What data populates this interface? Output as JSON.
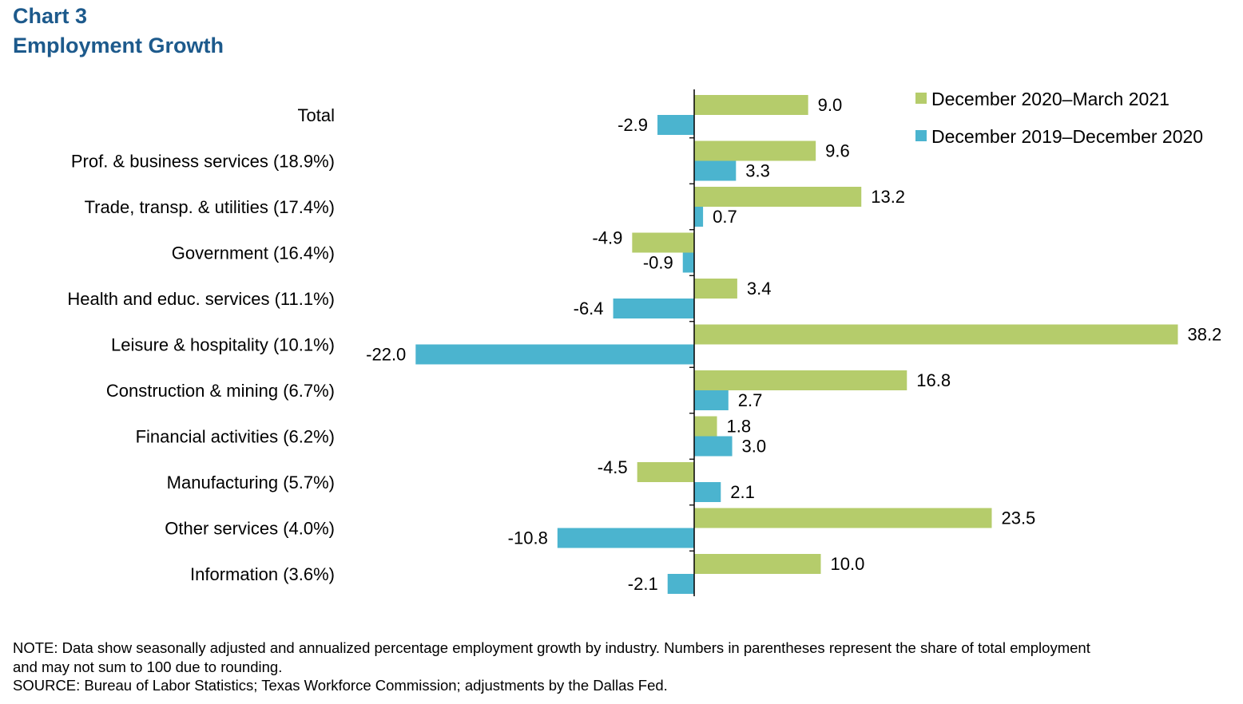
{
  "header": {
    "chart_number": "Chart 3",
    "title": "Employment Growth"
  },
  "colors": {
    "title": "#1d5a8c",
    "series_recent": "#b5cc6b",
    "series_prior": "#4bb4cf"
  },
  "chart_data": {
    "type": "bar",
    "orientation": "horizontal",
    "title": "Employment Growth",
    "categories": [
      "Total",
      "Prof. & business services (18.9%)",
      "Trade, transp. & utilities (17.4%)",
      "Government (16.4%)",
      "Health and educ. services (11.1%)",
      "Leisure & hospitality (10.1%)",
      "Construction & mining (6.7%)",
      "Financial activities (6.2%)",
      "Manufacturing (5.7%)",
      "Other services (4.0%)",
      "Information (3.6%)"
    ],
    "series": [
      {
        "name": "December 2020–March 2021",
        "color": "#b5cc6b",
        "values": [
          9.0,
          9.6,
          13.2,
          -4.9,
          3.4,
          38.2,
          16.8,
          1.8,
          -4.5,
          23.5,
          10.0
        ],
        "labels": [
          "9.0",
          "9.6",
          "13.2",
          "-4.9",
          "3.4",
          "38.2",
          "16.8",
          "1.8",
          "-4.5",
          "23.5",
          "10.0"
        ]
      },
      {
        "name": "December 2019–December 2020",
        "color": "#4bb4cf",
        "values": [
          -2.9,
          3.3,
          0.7,
          -0.9,
          -6.4,
          -22.0,
          2.7,
          3.0,
          2.1,
          -10.8,
          -2.1
        ],
        "labels": [
          "-2.9",
          "3.3",
          "0.7",
          "-0.9",
          "-6.4",
          "-22.0",
          "2.7",
          "3.0",
          "2.1",
          "-10.8",
          "-2.1"
        ]
      }
    ],
    "legend_position": "top-right",
    "grid": false
  },
  "notes": {
    "note": "NOTE: Data show seasonally adjusted and annualized percentage employment growth by industry. Numbers in parentheses represent the share of total employment",
    "note_cont": "and may not sum to 100 due to rounding.",
    "source": "SOURCE: Bureau of Labor Statistics; Texas Workforce Commission; adjustments by the Dallas Fed."
  }
}
